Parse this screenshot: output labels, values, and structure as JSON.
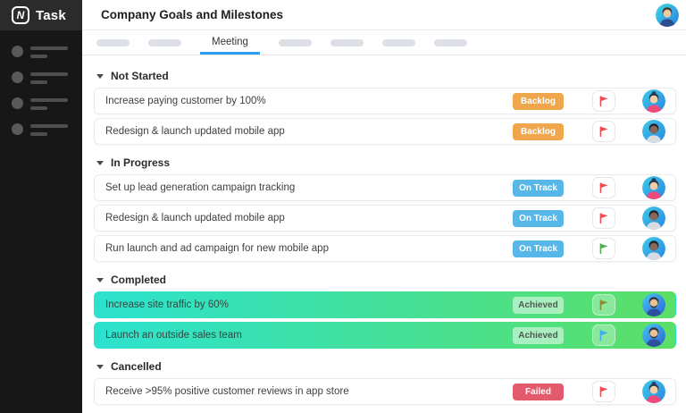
{
  "sidebar": {
    "logo_letter": "N",
    "logo_text": "Task",
    "skeleton_item_count": 4
  },
  "header": {
    "title": "Company Goals and Milestones",
    "user_avatar": "man-blue"
  },
  "tabs": {
    "active_label": "Meeting",
    "placeholders_before": 2,
    "placeholders_after": 4,
    "underline_color": "#2e9df0"
  },
  "statuses": {
    "Backlog": {
      "bg": "#f0a64b",
      "text": "#ffffff"
    },
    "On Track": {
      "bg": "#57b7e8",
      "text": "#ffffff"
    },
    "Achieved": {
      "bg": "rgba(255,255,255,0.50)",
      "text": "#4c5a52"
    },
    "Failed": {
      "bg": "#e45a6d",
      "text": "#ffffff"
    }
  },
  "flag_colors": {
    "red": "#ef4b50",
    "green": "#4cae4f",
    "olive": "#8b8b2f",
    "blue": "#3fa9f5"
  },
  "completed_row_gradient": [
    "#2ce2cf",
    "#5cdf66"
  ],
  "avatars": {
    "woman-pink": {
      "bg": [
        "#3ecbe8",
        "#2a86e0"
      ],
      "skin": "#f2cda6",
      "hair": "#2a3a55",
      "shirt": "#ef4a7b",
      "bun": true,
      "beard": false
    },
    "man-dark": {
      "bg": [
        "#3ecbe8",
        "#2a86e0"
      ],
      "skin": "#86675a",
      "hair": "#1e242b",
      "shirt": "#d8dce0",
      "bun": false,
      "beard": false
    },
    "man-beard": {
      "bg": [
        "#49c8ef",
        "#2b63d9"
      ],
      "skin": "#eac296",
      "hair": "#32343c",
      "shirt": "#2e4f9e",
      "bun": false,
      "beard": true
    },
    "man-blue": {
      "bg": [
        "#3ddbe0",
        "#2b7de3"
      ],
      "skin": "#edcba4",
      "hair": "#4a3627",
      "shirt": "#2c4a8e",
      "bun": false,
      "beard": false
    }
  },
  "sections": [
    {
      "name": "Not Started",
      "tasks": [
        {
          "title": "Increase paying customer by 100%",
          "status": "Backlog",
          "flag": "red",
          "avatar": "woman-pink",
          "completed": false
        },
        {
          "title": "Redesign & launch updated mobile app",
          "status": "Backlog",
          "flag": "red",
          "avatar": "man-dark",
          "completed": false
        }
      ]
    },
    {
      "name": "In Progress",
      "tasks": [
        {
          "title": "Set up lead generation campaign tracking",
          "status": "On Track",
          "flag": "red",
          "avatar": "woman-pink",
          "completed": false
        },
        {
          "title": "Redesign & launch updated mobile app",
          "status": "On Track",
          "flag": "red",
          "avatar": "man-dark",
          "completed": false
        },
        {
          "title": "Run launch and ad campaign for new mobile app",
          "status": "On Track",
          "flag": "green",
          "avatar": "man-dark",
          "completed": false
        }
      ]
    },
    {
      "name": "Completed",
      "tasks": [
        {
          "title": "Increase site traffic by 60%",
          "status": "Achieved",
          "flag": "olive",
          "avatar": "man-beard",
          "completed": true
        },
        {
          "title": "Launch an outside sales team",
          "status": "Achieved",
          "flag": "blue",
          "avatar": "man-beard",
          "completed": true
        }
      ]
    },
    {
      "name": "Cancelled",
      "tasks": [
        {
          "title": "Receive >95% positive customer reviews in app store",
          "status": "Failed",
          "flag": "red",
          "avatar": "woman-pink",
          "completed": false
        }
      ]
    }
  ]
}
